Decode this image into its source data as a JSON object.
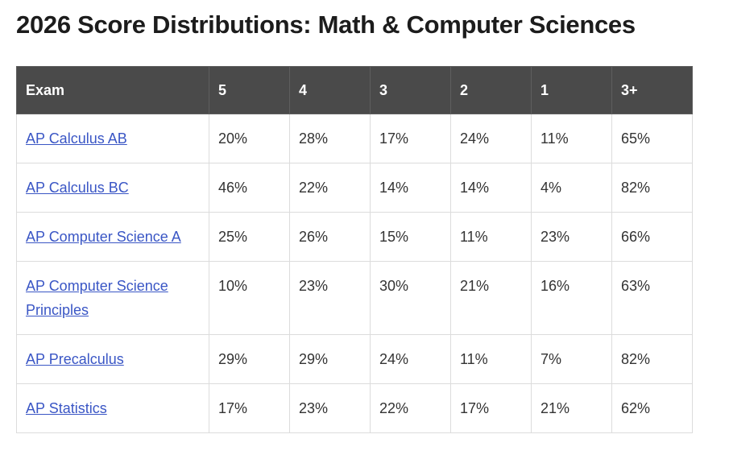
{
  "header": {
    "title": "2026 Score Distributions: Math & Computer Sciences"
  },
  "table": {
    "columns": [
      "Exam",
      "5",
      "4",
      "3",
      "2",
      "1",
      "3+"
    ],
    "rows": [
      [
        "AP Calculus AB",
        "20%",
        "28%",
        "17%",
        "24%",
        "11%",
        "65%"
      ],
      [
        "AP Calculus BC",
        "46%",
        "22%",
        "14%",
        "14%",
        "4%",
        "82%"
      ],
      [
        "AP Computer Science A",
        "25%",
        "26%",
        "15%",
        "11%",
        "23%",
        "66%"
      ],
      [
        "AP Computer Science Principles",
        "10%",
        "23%",
        "30%",
        "21%",
        "16%",
        "63%"
      ],
      [
        "AP Precalculus",
        "29%",
        "29%",
        "24%",
        "11%",
        "7%",
        "82%"
      ],
      [
        "AP Statistics",
        "17%",
        "23%",
        "22%",
        "17%",
        "21%",
        "62%"
      ]
    ]
  }
}
